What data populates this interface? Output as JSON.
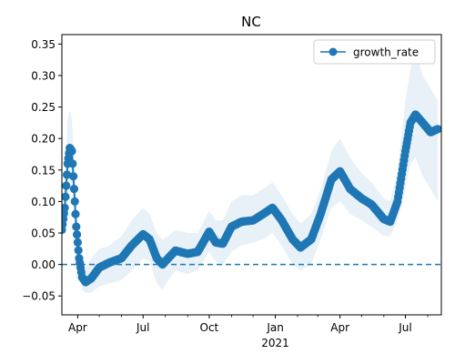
{
  "chart_data": {
    "type": "line",
    "title": "NC",
    "xlabel": "",
    "ylabel": "",
    "x_range": [
      "2020-03-10",
      "2021-08-20"
    ],
    "ylim": [
      -0.08,
      0.365
    ],
    "yticks": [
      -0.05,
      0.0,
      0.05,
      0.1,
      0.15,
      0.2,
      0.25,
      0.3,
      0.35
    ],
    "ytick_labels": [
      "−0.05",
      "0.00",
      "0.05",
      "0.10",
      "0.15",
      "0.20",
      "0.25",
      "0.30",
      "0.35"
    ],
    "xticks": [
      {
        "date": "2020-04-01",
        "label": "Apr",
        "sublabel": ""
      },
      {
        "date": "2020-07-01",
        "label": "Jul",
        "sublabel": ""
      },
      {
        "date": "2020-10-01",
        "label": "Oct",
        "sublabel": ""
      },
      {
        "date": "2021-01-01",
        "label": "Jan",
        "sublabel": "2021"
      },
      {
        "date": "2021-04-01",
        "label": "Apr",
        "sublabel": ""
      },
      {
        "date": "2021-07-01",
        "label": "Jul",
        "sublabel": ""
      }
    ],
    "minor_xticks": [
      "2020-05-01",
      "2020-06-01",
      "2020-08-01",
      "2020-09-01",
      "2020-11-01",
      "2020-12-01",
      "2021-02-01",
      "2021-03-01",
      "2021-05-01",
      "2021-06-01",
      "2021-08-01"
    ],
    "reference_line": {
      "y": 0.0,
      "style": "dashed",
      "color": "#1f77b4"
    },
    "legend": {
      "position": "top-right",
      "entries": [
        "growth_rate"
      ]
    },
    "series": [
      {
        "name": "growth_rate",
        "color": "#1f77b4",
        "marker": "circle",
        "points": [
          [
            "2020-03-10",
            0.055,
            0.045,
            0.07
          ],
          [
            "2020-03-14",
            0.09,
            0.06,
            0.13
          ],
          [
            "2020-03-18",
            0.16,
            0.1,
            0.23
          ],
          [
            "2020-03-21",
            0.185,
            0.13,
            0.245
          ],
          [
            "2020-03-24",
            0.18,
            0.13,
            0.23
          ],
          [
            "2020-03-27",
            0.12,
            0.08,
            0.16
          ],
          [
            "2020-03-30",
            0.06,
            0.03,
            0.09
          ],
          [
            "2020-04-03",
            0.01,
            -0.01,
            0.03
          ],
          [
            "2020-04-07",
            -0.02,
            -0.04,
            0.0
          ],
          [
            "2020-04-12",
            -0.028,
            -0.045,
            -0.005
          ],
          [
            "2020-04-20",
            -0.022,
            -0.045,
            0.01
          ],
          [
            "2020-05-01",
            -0.005,
            -0.035,
            0.025
          ],
          [
            "2020-05-15",
            0.003,
            -0.03,
            0.03
          ],
          [
            "2020-06-01",
            0.01,
            -0.025,
            0.045
          ],
          [
            "2020-06-15",
            0.03,
            -0.01,
            0.07
          ],
          [
            "2020-07-01",
            0.048,
            0.01,
            0.09
          ],
          [
            "2020-07-10",
            0.04,
            0.005,
            0.08
          ],
          [
            "2020-07-20",
            0.01,
            -0.03,
            0.05
          ],
          [
            "2020-07-28",
            0.0,
            -0.04,
            0.04
          ],
          [
            "2020-08-05",
            0.01,
            -0.025,
            0.045
          ],
          [
            "2020-08-15",
            0.022,
            -0.01,
            0.055
          ],
          [
            "2020-09-01",
            0.017,
            -0.015,
            0.05
          ],
          [
            "2020-09-15",
            0.02,
            -0.01,
            0.05
          ],
          [
            "2020-10-01",
            0.052,
            0.02,
            0.085
          ],
          [
            "2020-10-10",
            0.035,
            0.005,
            0.07
          ],
          [
            "2020-10-20",
            0.033,
            0.0,
            0.07
          ],
          [
            "2020-11-01",
            0.06,
            0.02,
            0.1
          ],
          [
            "2020-11-15",
            0.068,
            0.03,
            0.11
          ],
          [
            "2020-12-01",
            0.07,
            0.035,
            0.11
          ],
          [
            "2020-12-15",
            0.08,
            0.04,
            0.12
          ],
          [
            "2020-12-28",
            0.09,
            0.05,
            0.13
          ],
          [
            "2021-01-10",
            0.07,
            0.03,
            0.11
          ],
          [
            "2021-01-25",
            0.04,
            0.0,
            0.08
          ],
          [
            "2021-02-05",
            0.027,
            -0.01,
            0.065
          ],
          [
            "2021-02-20",
            0.04,
            0.0,
            0.08
          ],
          [
            "2021-03-05",
            0.08,
            0.04,
            0.12
          ],
          [
            "2021-03-20",
            0.135,
            0.09,
            0.18
          ],
          [
            "2021-04-01",
            0.148,
            0.1,
            0.2
          ],
          [
            "2021-04-15",
            0.12,
            0.08,
            0.17
          ],
          [
            "2021-05-01",
            0.105,
            0.07,
            0.145
          ],
          [
            "2021-05-15",
            0.095,
            0.06,
            0.13
          ],
          [
            "2021-06-01",
            0.072,
            0.045,
            0.105
          ],
          [
            "2021-06-10",
            0.068,
            0.045,
            0.1
          ],
          [
            "2021-06-20",
            0.1,
            0.07,
            0.15
          ],
          [
            "2021-07-01",
            0.18,
            0.12,
            0.26
          ],
          [
            "2021-07-08",
            0.225,
            0.16,
            0.31
          ],
          [
            "2021-07-15",
            0.238,
            0.17,
            0.34
          ],
          [
            "2021-07-25",
            0.225,
            0.14,
            0.3
          ],
          [
            "2021-08-05",
            0.21,
            0.12,
            0.28
          ],
          [
            "2021-08-15",
            0.215,
            0.1,
            0.26
          ]
        ]
      }
    ]
  }
}
